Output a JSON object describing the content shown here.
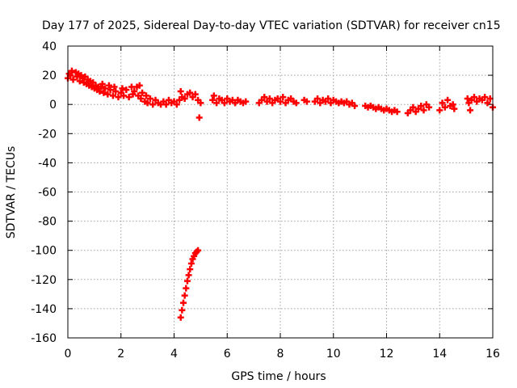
{
  "chart_data": {
    "type": "scatter",
    "title": "Day 177 of 2025, Sidereal Day-to-day VTEC variation (SDTVAR) for receiver cn15",
    "xlabel": "GPS time / hours",
    "ylabel": "SDTVAR / TECUs",
    "xlim": [
      0,
      16
    ],
    "ylim": [
      -160,
      40
    ],
    "xticks": [
      0,
      2,
      4,
      6,
      8,
      10,
      12,
      14,
      16
    ],
    "yticks": [
      40,
      20,
      0,
      -20,
      -40,
      -60,
      -80,
      -100,
      -120,
      -140,
      -160
    ],
    "grid": true,
    "marker": "+",
    "color": "#ff0000",
    "series": [
      {
        "name": "SDTVAR",
        "points": [
          [
            0.0,
            18
          ],
          [
            0.05,
            21
          ],
          [
            0.1,
            20
          ],
          [
            0.15,
            23
          ],
          [
            0.2,
            17
          ],
          [
            0.3,
            22
          ],
          [
            0.35,
            19
          ],
          [
            0.4,
            21
          ],
          [
            0.45,
            16
          ],
          [
            0.5,
            20
          ],
          [
            0.55,
            18
          ],
          [
            0.6,
            15
          ],
          [
            0.65,
            19
          ],
          [
            0.7,
            14
          ],
          [
            0.75,
            17
          ],
          [
            0.8,
            13
          ],
          [
            0.85,
            16
          ],
          [
            0.9,
            12
          ],
          [
            0.95,
            15
          ],
          [
            1.0,
            11
          ],
          [
            1.05,
            13
          ],
          [
            1.1,
            10
          ],
          [
            1.15,
            12
          ],
          [
            1.2,
            9
          ],
          [
            1.25,
            12
          ],
          [
            1.3,
            14
          ],
          [
            1.35,
            8
          ],
          [
            1.4,
            11
          ],
          [
            1.5,
            7
          ],
          [
            1.55,
            13
          ],
          [
            1.6,
            10
          ],
          [
            1.7,
            6
          ],
          [
            1.75,
            12
          ],
          [
            1.8,
            9
          ],
          [
            1.9,
            5
          ],
          [
            2.0,
            8
          ],
          [
            2.05,
            11
          ],
          [
            2.1,
            6
          ],
          [
            2.2,
            10
          ],
          [
            2.3,
            5
          ],
          [
            2.4,
            12
          ],
          [
            2.45,
            7
          ],
          [
            2.5,
            9
          ],
          [
            2.6,
            12
          ],
          [
            2.65,
            6
          ],
          [
            2.7,
            13
          ],
          [
            2.75,
            4
          ],
          [
            2.8,
            8
          ],
          [
            2.9,
            2
          ],
          [
            2.95,
            6
          ],
          [
            3.0,
            1
          ],
          [
            3.1,
            4
          ],
          [
            3.2,
            0
          ],
          [
            3.3,
            3
          ],
          [
            3.4,
            1
          ],
          [
            3.5,
            0
          ],
          [
            3.6,
            2
          ],
          [
            3.7,
            0
          ],
          [
            3.8,
            3
          ],
          [
            3.9,
            1
          ],
          [
            4.0,
            2
          ],
          [
            4.1,
            0
          ],
          [
            4.2,
            3
          ],
          [
            4.25,
            9
          ],
          [
            4.3,
            5
          ],
          [
            4.4,
            4
          ],
          [
            4.5,
            7
          ],
          [
            4.6,
            8
          ],
          [
            4.7,
            5
          ],
          [
            4.8,
            7
          ],
          [
            4.9,
            3
          ],
          [
            5.0,
            1
          ],
          [
            4.95,
            -9
          ],
          [
            4.25,
            -146
          ],
          [
            4.3,
            -141
          ],
          [
            4.35,
            -136
          ],
          [
            4.4,
            -131
          ],
          [
            4.45,
            -126
          ],
          [
            4.5,
            -121
          ],
          [
            4.55,
            -117
          ],
          [
            4.6,
            -113
          ],
          [
            4.65,
            -109
          ],
          [
            4.7,
            -106
          ],
          [
            4.75,
            -104
          ],
          [
            4.8,
            -102
          ],
          [
            4.85,
            -101
          ],
          [
            4.9,
            -100
          ],
          [
            5.45,
            3
          ],
          [
            5.5,
            6
          ],
          [
            5.6,
            1
          ],
          [
            5.7,
            4
          ],
          [
            5.8,
            3
          ],
          [
            5.9,
            1
          ],
          [
            6.0,
            4
          ],
          [
            6.1,
            2
          ],
          [
            6.2,
            3
          ],
          [
            6.3,
            1
          ],
          [
            6.4,
            3
          ],
          [
            6.5,
            2
          ],
          [
            6.6,
            1
          ],
          [
            6.7,
            2
          ],
          [
            7.2,
            1
          ],
          [
            7.3,
            3
          ],
          [
            7.4,
            5
          ],
          [
            7.5,
            2
          ],
          [
            7.6,
            4
          ],
          [
            7.7,
            1
          ],
          [
            7.8,
            3
          ],
          [
            7.9,
            4
          ],
          [
            8.0,
            2
          ],
          [
            8.1,
            5
          ],
          [
            8.2,
            1
          ],
          [
            8.3,
            3
          ],
          [
            8.4,
            4
          ],
          [
            8.5,
            2
          ],
          [
            8.6,
            1
          ],
          [
            8.9,
            3
          ],
          [
            9.0,
            2
          ],
          [
            9.3,
            2
          ],
          [
            9.4,
            4
          ],
          [
            9.5,
            1
          ],
          [
            9.6,
            3
          ],
          [
            9.7,
            2
          ],
          [
            9.8,
            4
          ],
          [
            9.9,
            1
          ],
          [
            10.0,
            3
          ],
          [
            10.1,
            2
          ],
          [
            10.2,
            1
          ],
          [
            10.3,
            2
          ],
          [
            10.4,
            1
          ],
          [
            10.5,
            2
          ],
          [
            10.6,
            0
          ],
          [
            10.7,
            1
          ],
          [
            10.8,
            -1
          ],
          [
            11.2,
            -1
          ],
          [
            11.3,
            -2
          ],
          [
            11.4,
            -1
          ],
          [
            11.5,
            -2
          ],
          [
            11.6,
            -3
          ],
          [
            11.7,
            -2
          ],
          [
            11.8,
            -3
          ],
          [
            11.9,
            -4
          ],
          [
            12.0,
            -3
          ],
          [
            12.1,
            -4
          ],
          [
            12.2,
            -5
          ],
          [
            12.3,
            -4
          ],
          [
            12.4,
            -5
          ],
          [
            12.8,
            -6
          ],
          [
            12.9,
            -4
          ],
          [
            13.0,
            -2
          ],
          [
            13.1,
            -5
          ],
          [
            13.2,
            -3
          ],
          [
            13.3,
            -1
          ],
          [
            13.4,
            -4
          ],
          [
            13.5,
            0
          ],
          [
            13.6,
            -2
          ],
          [
            14.0,
            -4
          ],
          [
            14.1,
            1
          ],
          [
            14.2,
            -2
          ],
          [
            14.3,
            3
          ],
          [
            14.4,
            -1
          ],
          [
            14.5,
            0
          ],
          [
            14.55,
            -3
          ],
          [
            15.05,
            4
          ],
          [
            15.1,
            1
          ],
          [
            15.15,
            -4
          ],
          [
            15.2,
            3
          ],
          [
            15.3,
            5
          ],
          [
            15.4,
            2
          ],
          [
            15.5,
            4
          ],
          [
            15.6,
            3
          ],
          [
            15.7,
            5
          ],
          [
            15.8,
            1
          ],
          [
            15.9,
            4
          ],
          [
            16.0,
            -2
          ]
        ]
      }
    ]
  }
}
